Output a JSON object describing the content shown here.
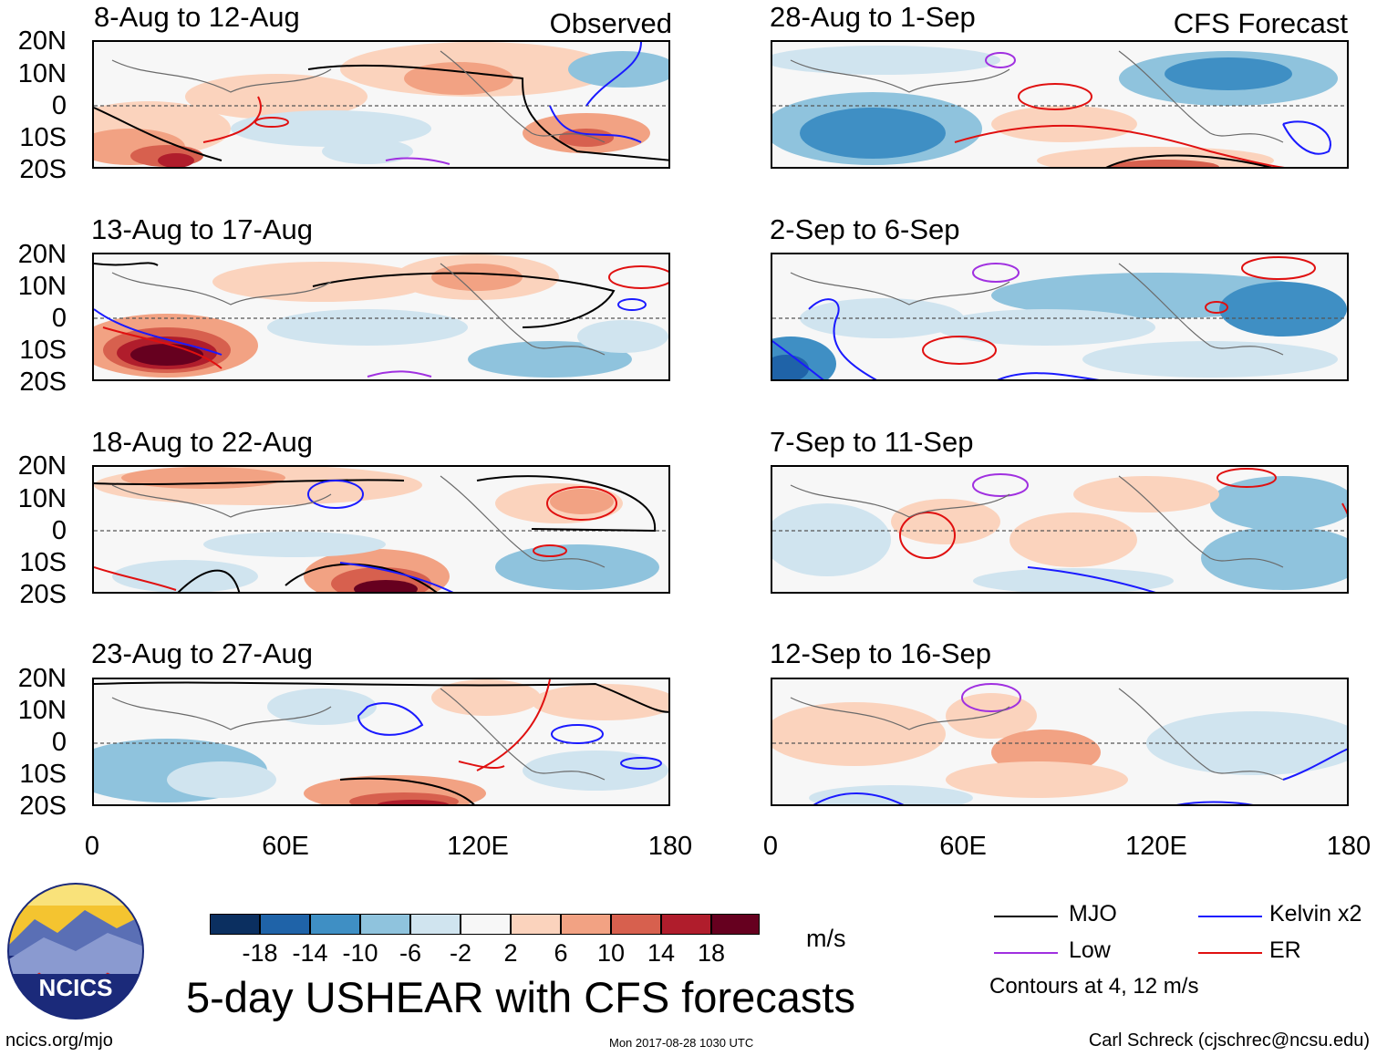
{
  "header": {
    "observed_label": "Observed",
    "forecast_label": "CFS Forecast"
  },
  "panels_left": [
    {
      "title": "8-Aug to 12-Aug"
    },
    {
      "title": "13-Aug to 17-Aug"
    },
    {
      "title": "18-Aug to 22-Aug"
    },
    {
      "title": "23-Aug to 27-Aug"
    }
  ],
  "panels_right": [
    {
      "title": "28-Aug to 1-Sep"
    },
    {
      "title": "2-Sep to 6-Sep"
    },
    {
      "title": "7-Sep to 11-Sep"
    },
    {
      "title": "12-Sep to 16-Sep"
    }
  ],
  "axes": {
    "lat_labels": [
      "20N",
      "10N",
      "0",
      "10S",
      "20S"
    ],
    "lon_labels": [
      "0",
      "60E",
      "120E",
      "180"
    ]
  },
  "colorbar": {
    "unit": "m/s",
    "labels": [
      "-18",
      "-14",
      "-10",
      "-6",
      "-2",
      "2",
      "6",
      "10",
      "14",
      "18"
    ],
    "colors": [
      "#0b2f60",
      "#1f63a8",
      "#3f8fc4",
      "#8fc3dd",
      "#d0e4ef",
      "#f7f7f7",
      "#fbd3bd",
      "#f2a283",
      "#d7604e",
      "#b01d2c",
      "#66001f"
    ]
  },
  "legend": {
    "items": [
      {
        "label": "MJO",
        "color": "#000000"
      },
      {
        "label": "Kelvin x2",
        "color": "#1a1aff"
      },
      {
        "label": "Low",
        "color": "#a030e0"
      },
      {
        "label": "ER",
        "color": "#e01010"
      }
    ],
    "note": "Contours at 4, 12 m/s"
  },
  "footer": {
    "main_title": "5-day USHEAR with CFS forecasts",
    "logo_text": "NCICS",
    "website": "ncics.org/mjo",
    "timestamp": "Mon 2017-08-28 1030 UTC",
    "credit": "Carl Schreck (cjschrec@ncsu.edu)"
  }
}
